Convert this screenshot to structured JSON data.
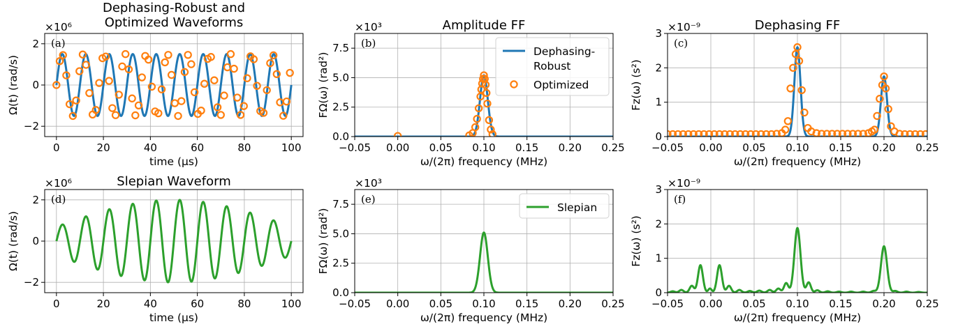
{
  "chart_data": [
    {
      "id": "a",
      "type": "line",
      "title": [
        "Dephasing-Robust and",
        "Optimized Waveforms"
      ],
      "panel_label": "(a)",
      "xlabel": "time (μs)",
      "ylabel": "Ω(t) (rad/s)",
      "multiplier": "×10⁶",
      "xlim": [
        -5,
        105
      ],
      "ylim": [
        -2.5,
        2.5
      ],
      "xticks": [
        0,
        20,
        40,
        60,
        80,
        100
      ],
      "yticks": [
        -2,
        0,
        2
      ],
      "grid": true,
      "series": [
        {
          "kind": "line",
          "color": "#1f77b4",
          "function": "sine",
          "amplitude": 1.5,
          "period": 10,
          "x_range": [
            0,
            100
          ]
        },
        {
          "kind": "markers",
          "color": "#ff7f0e",
          "x": [
            0,
            1.4,
            2.8,
            4.2,
            5.6,
            7.0,
            8.4,
            9.8,
            11.2,
            12.6,
            14.0,
            15.4,
            16.8,
            18.2,
            19.6,
            21.0,
            22.4,
            23.8,
            25.2,
            26.6,
            28.0,
            29.4,
            30.8,
            32.2,
            33.6,
            35.0,
            36.4,
            37.8,
            39.2,
            40.6,
            42.0,
            43.4,
            44.8,
            46.2,
            47.6,
            49.0,
            50.4,
            51.8,
            53.2,
            54.6,
            56.0,
            57.4,
            58.8,
            60.2,
            61.6,
            63.0,
            64.4,
            65.8,
            67.2,
            68.6,
            70.0,
            71.4,
            72.8,
            74.2,
            75.6,
            77.0,
            78.4,
            79.8,
            81.2,
            82.6,
            84.0,
            85.4,
            86.8,
            88.2,
            89.6,
            91.0,
            92.4,
            93.8,
            95.2,
            96.6,
            98.0,
            99.4
          ],
          "y": [
            0.0,
            1.16,
            1.45,
            0.47,
            -0.93,
            -1.5,
            -0.75,
            0.67,
            1.48,
            0.98,
            -0.39,
            -1.43,
            -1.21,
            0.1,
            1.3,
            1.38,
            0.2,
            -1.12,
            -1.46,
            -0.47,
            0.9,
            1.5,
            0.76,
            -0.65,
            -1.47,
            -0.99,
            0.37,
            1.41,
            1.23,
            -0.08,
            -1.28,
            -1.37,
            -0.21,
            1.1,
            1.46,
            0.49,
            -0.88,
            -1.5,
            -0.78,
            0.63,
            1.46,
            1.01,
            -0.35,
            -1.4,
            -1.24,
            0.06,
            1.27,
            1.36,
            0.23,
            -1.08,
            -1.45,
            -0.51,
            0.86,
            1.5,
            0.79,
            -0.61,
            -1.45,
            -1.02,
            0.33,
            1.39,
            1.25,
            -0.04,
            -1.26,
            -1.35,
            -0.25,
            1.06,
            1.44,
            0.53,
            -0.84,
            -1.49,
            -0.8,
            0.59
          ]
        }
      ]
    },
    {
      "id": "b",
      "type": "line",
      "title": "Amplitude FF",
      "panel_label": "(b)",
      "xlabel": "ω/(2π) frequency (MHz)",
      "ylabel": "FΩ(ω) (rad²)",
      "multiplier": "×10³",
      "xlim": [
        -0.05,
        0.25
      ],
      "ylim": [
        0,
        8.75
      ],
      "xticks": [
        -0.05,
        0.0,
        0.05,
        0.1,
        0.15,
        0.2,
        0.25
      ],
      "yticks": [
        0.0,
        2.5,
        5.0,
        7.5
      ],
      "grid": true,
      "legend": {
        "placement": "top-right",
        "entries": [
          {
            "label": [
              "Dephasing-",
              "Robust"
            ],
            "kind": "line",
            "color": "#1f77b4"
          },
          {
            "label": [
              "Optimized"
            ],
            "kind": "marker",
            "color": "#ff7f0e"
          }
        ]
      },
      "series": [
        {
          "kind": "line",
          "color": "#1f77b4",
          "function": "peaks",
          "baseline": 0.0,
          "peaks": [
            {
              "center": 0.1,
              "height": 5.2,
              "sigma": 0.0045
            }
          ],
          "x_range": [
            -0.05,
            0.25
          ]
        },
        {
          "kind": "markers",
          "color": "#ff7f0e",
          "x": [
            0.0,
            0.083,
            0.087,
            0.09,
            0.092,
            0.094,
            0.096,
            0.097,
            0.098,
            0.099,
            0.1,
            0.101,
            0.102,
            0.103,
            0.104,
            0.106,
            0.108,
            0.11
          ],
          "y": [
            0.05,
            0.1,
            0.3,
            0.8,
            1.5,
            2.4,
            3.4,
            4.0,
            4.5,
            4.9,
            5.2,
            4.9,
            4.4,
            3.7,
            2.8,
            1.4,
            0.6,
            0.2
          ]
        }
      ]
    },
    {
      "id": "c",
      "type": "line",
      "title": "Dephasing FF",
      "panel_label": "(c)",
      "xlabel": "ω/(2π) frequency (MHz)",
      "ylabel": "Fz(ω) (s²)",
      "multiplier": "×10⁻⁹",
      "xlim": [
        -0.05,
        0.25
      ],
      "ylim": [
        0,
        3
      ],
      "xticks": [
        -0.05,
        0.0,
        0.05,
        0.1,
        0.15,
        0.2,
        0.25
      ],
      "yticks": [
        0,
        1,
        2,
        3
      ],
      "grid": true,
      "series": [
        {
          "kind": "line",
          "color": "#1f77b4",
          "function": "peaks",
          "baseline": 0.0,
          "peaks": [
            {
              "center": 0.1,
              "height": 2.6,
              "sigma": 0.0035
            },
            {
              "center": 0.2,
              "height": 1.75,
              "sigma": 0.0035
            }
          ],
          "x_range": [
            -0.05,
            0.25
          ]
        },
        {
          "kind": "markers",
          "color": "#ff7f0e",
          "x": [
            -0.05,
            -0.044,
            -0.038,
            -0.032,
            -0.026,
            -0.02,
            -0.014,
            -0.008,
            -0.002,
            0.004,
            0.01,
            0.016,
            0.022,
            0.028,
            0.034,
            0.04,
            0.046,
            0.052,
            0.058,
            0.064,
            0.07,
            0.076,
            0.082,
            0.086,
            0.089,
            0.092,
            0.095,
            0.098,
            0.1,
            0.102,
            0.105,
            0.108,
            0.112,
            0.116,
            0.122,
            0.128,
            0.134,
            0.14,
            0.146,
            0.152,
            0.158,
            0.164,
            0.17,
            0.176,
            0.182,
            0.186,
            0.189,
            0.192,
            0.195,
            0.198,
            0.2,
            0.202,
            0.205,
            0.208,
            0.212,
            0.218,
            0.224,
            0.23,
            0.236,
            0.242,
            0.248
          ],
          "y": [
            0.07,
            0.07,
            0.07,
            0.07,
            0.07,
            0.07,
            0.07,
            0.07,
            0.07,
            0.07,
            0.07,
            0.07,
            0.07,
            0.07,
            0.07,
            0.07,
            0.07,
            0.07,
            0.07,
            0.07,
            0.07,
            0.08,
            0.1,
            0.2,
            0.45,
            1.4,
            2.0,
            2.4,
            2.6,
            2.2,
            1.35,
            0.7,
            0.25,
            0.15,
            0.1,
            0.08,
            0.08,
            0.08,
            0.08,
            0.08,
            0.08,
            0.08,
            0.08,
            0.08,
            0.1,
            0.15,
            0.2,
            0.6,
            1.1,
            1.5,
            1.75,
            1.4,
            0.8,
            0.3,
            0.15,
            0.08,
            0.07,
            0.07,
            0.07,
            0.07,
            0.07
          ]
        }
      ]
    },
    {
      "id": "d",
      "type": "line",
      "title": "Slepian Waveform",
      "panel_label": "(d)",
      "xlabel": "time (μs)",
      "ylabel": "Ω(t) (rad/s)",
      "multiplier": "×10⁶",
      "xlim": [
        -5,
        105
      ],
      "ylim": [
        -2.5,
        2.5
      ],
      "xticks": [
        0,
        20,
        40,
        60,
        80,
        100
      ],
      "yticks": [
        -2,
        0,
        2
      ],
      "grid": true,
      "series": [
        {
          "kind": "line",
          "color": "#2ca02c",
          "function": "windowed-sine",
          "amplitude": 2.0,
          "envelope_base": 0.35,
          "period": 10,
          "x_range": [
            0,
            100
          ]
        }
      ]
    },
    {
      "id": "e",
      "type": "line",
      "title": "",
      "panel_label": "(e)",
      "xlabel": "ω/(2π) frequency (MHz)",
      "ylabel": "FΩ(ω) (rad²)",
      "multiplier": "×10³",
      "xlim": [
        -0.05,
        0.25
      ],
      "ylim": [
        0,
        8.75
      ],
      "xticks": [
        -0.05,
        0.0,
        0.05,
        0.1,
        0.15,
        0.2,
        0.25
      ],
      "yticks": [
        0.0,
        2.5,
        5.0,
        7.5
      ],
      "grid": true,
      "legend": {
        "placement": "top-right",
        "entries": [
          {
            "label": [
              "Slepian"
            ],
            "kind": "line",
            "color": "#2ca02c"
          }
        ]
      },
      "series": [
        {
          "kind": "line",
          "color": "#2ca02c",
          "function": "peaks",
          "baseline": 0.0,
          "peaks": [
            {
              "center": 0.1,
              "height": 5.1,
              "sigma": 0.0045
            }
          ],
          "x_range": [
            -0.05,
            0.25
          ]
        }
      ]
    },
    {
      "id": "f",
      "type": "line",
      "title": "",
      "panel_label": "(f)",
      "xlabel": "ω/(2π) frequency (MHz)",
      "ylabel": "Fz(ω) (s²)",
      "multiplier": "×10⁻⁹",
      "xlim": [
        -0.05,
        0.25
      ],
      "ylim": [
        0,
        3
      ],
      "xticks": [
        -0.05,
        0.0,
        0.05,
        0.1,
        0.15,
        0.2,
        0.25
      ],
      "yticks": [
        0,
        1,
        2,
        3
      ],
      "grid": true,
      "series": [
        {
          "kind": "line",
          "color": "#2ca02c",
          "function": "peaks",
          "baseline": 0.0,
          "peaks": [
            {
              "center": -0.044,
              "height": 0.04,
              "sigma": 0.0025
            },
            {
              "center": -0.034,
              "height": 0.08,
              "sigma": 0.0025
            },
            {
              "center": -0.022,
              "height": 0.2,
              "sigma": 0.0025
            },
            {
              "center": -0.012,
              "height": 0.8,
              "sigma": 0.0028
            },
            {
              "center": -0.001,
              "height": 0.12,
              "sigma": 0.002
            },
            {
              "center": 0.01,
              "height": 0.8,
              "sigma": 0.0028
            },
            {
              "center": 0.021,
              "height": 0.2,
              "sigma": 0.0025
            },
            {
              "center": 0.033,
              "height": 0.08,
              "sigma": 0.0025
            },
            {
              "center": 0.045,
              "height": 0.05,
              "sigma": 0.0025
            },
            {
              "center": 0.056,
              "height": 0.06,
              "sigma": 0.0025
            },
            {
              "center": 0.068,
              "height": 0.08,
              "sigma": 0.0025
            },
            {
              "center": 0.078,
              "height": 0.12,
              "sigma": 0.0025
            },
            {
              "center": 0.087,
              "height": 0.28,
              "sigma": 0.0025
            },
            {
              "center": 0.1,
              "height": 1.88,
              "sigma": 0.0035
            },
            {
              "center": 0.113,
              "height": 0.3,
              "sigma": 0.0025
            },
            {
              "center": 0.123,
              "height": 0.07,
              "sigma": 0.0025
            },
            {
              "center": 0.135,
              "height": 0.04,
              "sigma": 0.0025
            },
            {
              "center": 0.148,
              "height": 0.03,
              "sigma": 0.0025
            },
            {
              "center": 0.162,
              "height": 0.03,
              "sigma": 0.0025
            },
            {
              "center": 0.176,
              "height": 0.03,
              "sigma": 0.0025
            },
            {
              "center": 0.188,
              "height": 0.05,
              "sigma": 0.0025
            },
            {
              "center": 0.2,
              "height": 1.35,
              "sigma": 0.0035
            },
            {
              "center": 0.213,
              "height": 0.05,
              "sigma": 0.0025
            },
            {
              "center": 0.226,
              "height": 0.03,
              "sigma": 0.0025
            },
            {
              "center": 0.24,
              "height": 0.02,
              "sigma": 0.0025
            }
          ],
          "x_range": [
            -0.05,
            0.25
          ]
        }
      ]
    }
  ]
}
